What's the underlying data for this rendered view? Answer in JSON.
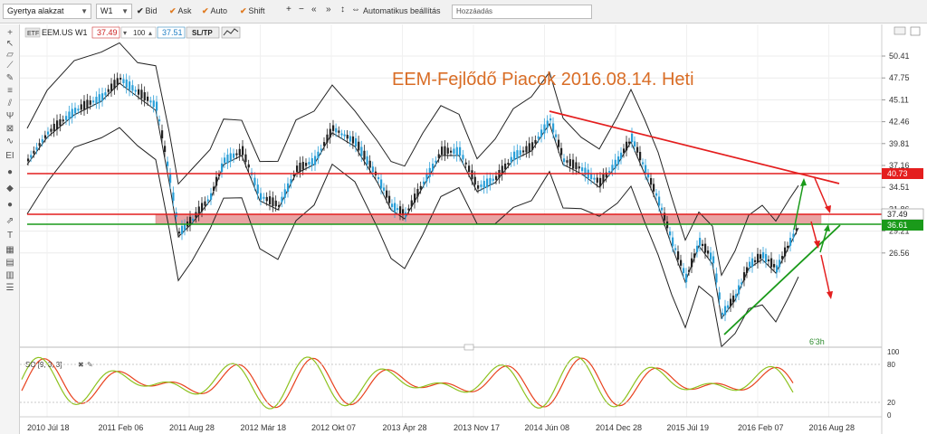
{
  "toolbar": {
    "chart_type": "Gyertya alakzat",
    "timeframe": "W1",
    "items": [
      {
        "label": "Bid",
        "checked": true
      },
      {
        "label": "Ask",
        "checked": true
      },
      {
        "label": "Auto",
        "checked": true
      },
      {
        "label": "Shift",
        "checked": true
      }
    ],
    "buttons": [
      "+",
      "−",
      "«",
      "»",
      "↕",
      "⇔"
    ],
    "auto_label": "Automatikus beállítás",
    "add_placeholder": "Hozzáadás"
  },
  "instrument": {
    "badge": "ETF",
    "symbol": "EEM.US W1",
    "bid": "37.49",
    "qty": "100",
    "ask": "37.51",
    "sltp": "SL/TP"
  },
  "chart_title": "EEM-Fejlődő Piacok 2016.08.14. Heti",
  "colors": {
    "title": "#d96d26",
    "resistance": "#e41e1e",
    "support": "#1a9a1a",
    "candle_up": "#2a9fd8",
    "candle_down": "#222222",
    "zone": "#e9a3a3"
  },
  "countdown": "6'3h",
  "chart_data": {
    "type": "candlestick",
    "price_axis": [
      "50.41",
      "47.75",
      "45.11",
      "42.46",
      "39.81",
      "37.16",
      "34.51",
      "31.86",
      "29.21",
      "26.56"
    ],
    "price_labels": {
      "resistance": "40.73",
      "current": "37.49",
      "support": "36.61"
    },
    "x_labels": [
      "2010 Júl 18",
      "2011 Feb 06",
      "2011 Aug 28",
      "2012 Már 18",
      "2012 Okt 07",
      "2013 Ápr 28",
      "2013 Nov 17",
      "2014 Jún 08",
      "2014 Dec 28",
      "2015 Júl 19",
      "2016 Feb 07",
      "2016 Aug 28"
    ],
    "oscillator": {
      "name": "SO [9, 3, 3]",
      "axis": [
        "100",
        "80",
        "20",
        "0"
      ],
      "levels": [
        80,
        20
      ]
    }
  }
}
